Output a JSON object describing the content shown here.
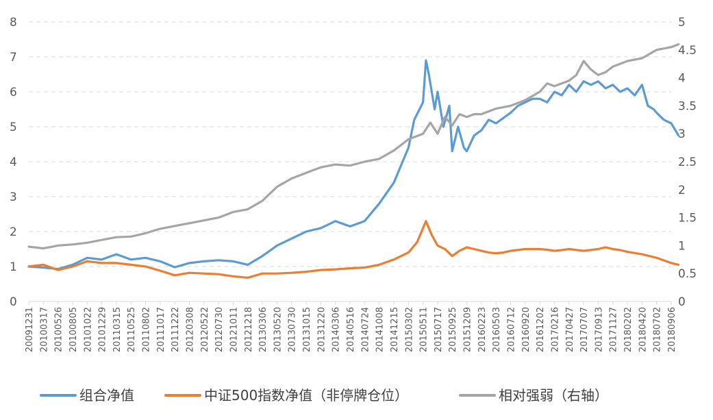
{
  "chart_data": {
    "type": "line",
    "title": "",
    "xlabel": "",
    "ylabel": "",
    "ylim_left": [
      0,
      8
    ],
    "ylim_right": [
      0,
      5
    ],
    "left_ticks": [
      "0",
      "1",
      "2",
      "3",
      "4",
      "5",
      "6",
      "7",
      "8"
    ],
    "right_ticks": [
      "0",
      "0.5",
      "1",
      "1.5",
      "2",
      "2.5",
      "3",
      "3.5",
      "4",
      "4.5",
      "5"
    ],
    "grid": true,
    "legend_position": "bottom",
    "categories": [
      "20091231",
      "20100317",
      "20100526",
      "20100805",
      "20101022",
      "20101229",
      "20110315",
      "20110525",
      "20110802",
      "20111017",
      "20111222",
      "20120308",
      "20120522",
      "20120730",
      "20121011",
      "20121218",
      "20130306",
      "20130520",
      "20130730",
      "20131015",
      "20131220",
      "20140306",
      "20140516",
      "20140724",
      "20141008",
      "20141215",
      "20150302",
      "20150511",
      "20150717",
      "20150925",
      "20151209",
      "20160223",
      "20160503",
      "20160712",
      "20160920",
      "20161202",
      "20170216",
      "20170427",
      "20170707",
      "20170913",
      "20171127",
      "20180202",
      "20180420",
      "20180702",
      "20180906"
    ],
    "series": [
      {
        "name": "组合净值",
        "axis": "left",
        "color": "#5B9BD5",
        "points": [
          [
            0,
            1.0
          ],
          [
            1,
            0.97
          ],
          [
            2,
            0.93
          ],
          [
            3,
            1.05
          ],
          [
            4,
            1.25
          ],
          [
            5,
            1.2
          ],
          [
            6,
            1.35
          ],
          [
            7,
            1.2
          ],
          [
            8,
            1.25
          ],
          [
            9,
            1.15
          ],
          [
            10,
            0.98
          ],
          [
            11,
            1.1
          ],
          [
            12,
            1.15
          ],
          [
            13,
            1.18
          ],
          [
            14,
            1.15
          ],
          [
            15,
            1.05
          ],
          [
            16,
            1.3
          ],
          [
            17,
            1.6
          ],
          [
            18,
            1.8
          ],
          [
            19,
            2.0
          ],
          [
            20,
            2.1
          ],
          [
            21,
            2.3
          ],
          [
            22,
            2.15
          ],
          [
            23,
            2.3
          ],
          [
            24,
            2.8
          ],
          [
            25,
            3.4
          ],
          [
            26,
            4.4
          ],
          [
            26.4,
            5.2
          ],
          [
            27,
            5.7
          ],
          [
            27.2,
            6.9
          ],
          [
            27.4,
            6.5
          ],
          [
            27.8,
            5.5
          ],
          [
            28,
            6.0
          ],
          [
            28.4,
            5.0
          ],
          [
            28.8,
            5.6
          ],
          [
            29,
            4.3
          ],
          [
            29.4,
            5.0
          ],
          [
            29.8,
            4.4
          ],
          [
            30,
            4.3
          ],
          [
            30.5,
            4.75
          ],
          [
            31,
            4.9
          ],
          [
            31.5,
            5.2
          ],
          [
            32,
            5.1
          ],
          [
            33,
            5.4
          ],
          [
            33.5,
            5.6
          ],
          [
            34,
            5.7
          ],
          [
            34.5,
            5.8
          ],
          [
            35,
            5.8
          ],
          [
            35.5,
            5.7
          ],
          [
            36,
            6.0
          ],
          [
            36.5,
            5.9
          ],
          [
            37,
            6.2
          ],
          [
            37.5,
            6.0
          ],
          [
            38,
            6.3
          ],
          [
            38.5,
            6.2
          ],
          [
            39,
            6.3
          ],
          [
            39.5,
            6.1
          ],
          [
            40,
            6.2
          ],
          [
            40.5,
            6.0
          ],
          [
            41,
            6.1
          ],
          [
            41.5,
            5.9
          ],
          [
            42,
            6.2
          ],
          [
            42.4,
            5.6
          ],
          [
            42.8,
            5.5
          ],
          [
            43,
            5.4
          ],
          [
            43.5,
            5.2
          ],
          [
            44,
            5.1
          ],
          [
            44.5,
            4.75
          ]
        ]
      },
      {
        "name": "中证500指数净值（非停牌仓位）",
        "axis": "left",
        "color": "#ED7D31",
        "points": [
          [
            0,
            1.0
          ],
          [
            1,
            1.05
          ],
          [
            2,
            0.9
          ],
          [
            3,
            1.0
          ],
          [
            4,
            1.15
          ],
          [
            5,
            1.1
          ],
          [
            6,
            1.1
          ],
          [
            7,
            1.05
          ],
          [
            8,
            1.0
          ],
          [
            9,
            0.88
          ],
          [
            10,
            0.75
          ],
          [
            11,
            0.82
          ],
          [
            12,
            0.8
          ],
          [
            13,
            0.78
          ],
          [
            14,
            0.72
          ],
          [
            15,
            0.68
          ],
          [
            16,
            0.8
          ],
          [
            17,
            0.8
          ],
          [
            18,
            0.82
          ],
          [
            19,
            0.85
          ],
          [
            20,
            0.9
          ],
          [
            21,
            0.92
          ],
          [
            22,
            0.95
          ],
          [
            23,
            0.97
          ],
          [
            24,
            1.05
          ],
          [
            25,
            1.2
          ],
          [
            26,
            1.4
          ],
          [
            26.6,
            1.7
          ],
          [
            27.2,
            2.3
          ],
          [
            27.6,
            1.9
          ],
          [
            28,
            1.6
          ],
          [
            28.5,
            1.5
          ],
          [
            29,
            1.3
          ],
          [
            29.5,
            1.45
          ],
          [
            30,
            1.55
          ],
          [
            30.5,
            1.5
          ],
          [
            31,
            1.45
          ],
          [
            31.5,
            1.4
          ],
          [
            32,
            1.38
          ],
          [
            32.5,
            1.4
          ],
          [
            33,
            1.45
          ],
          [
            34,
            1.5
          ],
          [
            35,
            1.5
          ],
          [
            35.5,
            1.48
          ],
          [
            36,
            1.45
          ],
          [
            36.5,
            1.47
          ],
          [
            37,
            1.5
          ],
          [
            38,
            1.45
          ],
          [
            39,
            1.5
          ],
          [
            39.5,
            1.55
          ],
          [
            40,
            1.5
          ],
          [
            40.5,
            1.47
          ],
          [
            41,
            1.42
          ],
          [
            42,
            1.35
          ],
          [
            43,
            1.25
          ],
          [
            44,
            1.1
          ],
          [
            44.5,
            1.05
          ]
        ]
      },
      {
        "name": "相对强弱（右轴）",
        "axis": "right",
        "color": "#A5A5A5",
        "points": [
          [
            0,
            0.98
          ],
          [
            1,
            0.95
          ],
          [
            2,
            1.0
          ],
          [
            3,
            1.02
          ],
          [
            4,
            1.05
          ],
          [
            5,
            1.1
          ],
          [
            6,
            1.15
          ],
          [
            7,
            1.16
          ],
          [
            8,
            1.22
          ],
          [
            9,
            1.3
          ],
          [
            10,
            1.35
          ],
          [
            11,
            1.4
          ],
          [
            12,
            1.45
          ],
          [
            13,
            1.5
          ],
          [
            14,
            1.6
          ],
          [
            15,
            1.65
          ],
          [
            16,
            1.8
          ],
          [
            17,
            2.05
          ],
          [
            18,
            2.2
          ],
          [
            19,
            2.3
          ],
          [
            20,
            2.4
          ],
          [
            21,
            2.45
          ],
          [
            22,
            2.43
          ],
          [
            23,
            2.5
          ],
          [
            24,
            2.55
          ],
          [
            25,
            2.7
          ],
          [
            26,
            2.9
          ],
          [
            27,
            3.0
          ],
          [
            27.5,
            3.2
          ],
          [
            28,
            3.0
          ],
          [
            28.5,
            3.3
          ],
          [
            29,
            3.15
          ],
          [
            29.5,
            3.35
          ],
          [
            30,
            3.3
          ],
          [
            30.5,
            3.35
          ],
          [
            31,
            3.35
          ],
          [
            32,
            3.45
          ],
          [
            33,
            3.5
          ],
          [
            34,
            3.6
          ],
          [
            35,
            3.75
          ],
          [
            35.5,
            3.9
          ],
          [
            36,
            3.85
          ],
          [
            37,
            3.95
          ],
          [
            37.5,
            4.05
          ],
          [
            38,
            4.3
          ],
          [
            38.5,
            4.15
          ],
          [
            39,
            4.05
          ],
          [
            39.5,
            4.1
          ],
          [
            40,
            4.2
          ],
          [
            41,
            4.3
          ],
          [
            42,
            4.35
          ],
          [
            43,
            4.5
          ],
          [
            44,
            4.55
          ],
          [
            44.5,
            4.6
          ]
        ]
      }
    ]
  }
}
